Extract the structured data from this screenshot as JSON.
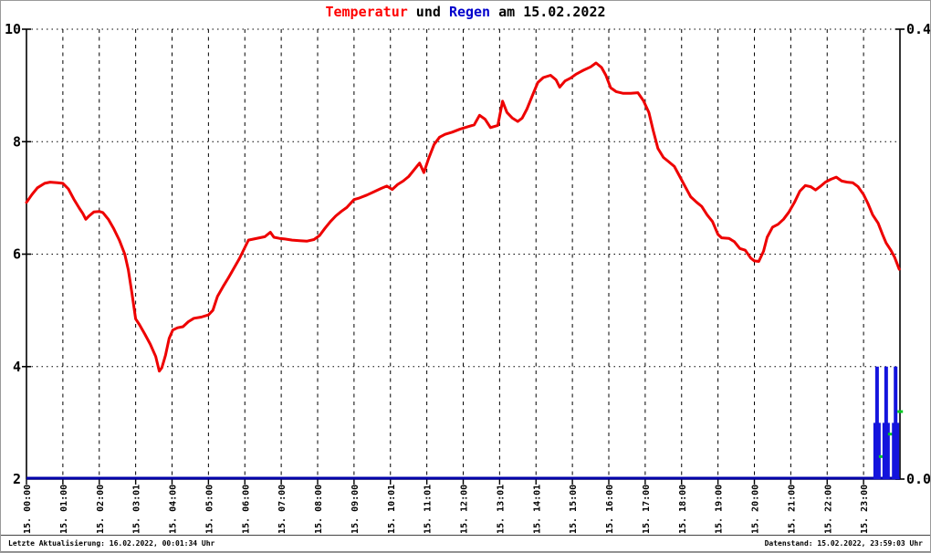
{
  "title": {
    "temperatur": "Temperatur",
    "und": " und ",
    "regen": "Regen",
    "date_suffix": " am 15.02.2022"
  },
  "footer": {
    "last_update": "Letzte Aktualisierung: 16.02.2022, 00:01:34 Uhr",
    "data_state": "Datenstand: 15.02.2022, 23:59:03 Uhr"
  },
  "colors": {
    "title_temperatur": "#ff0000",
    "title_regen": "#0000cc",
    "temperature_line": "#ee0000",
    "rain_bar": "#1414dd",
    "rain_baseline": "#0000aa",
    "rain_cumulative_mark": "#00cc22",
    "grid": "#000000"
  },
  "chart_data": {
    "type": "mixed-line-bar",
    "title": "Temperatur und Regen am 15.02.2022",
    "grid": {
      "horizontal": "dotted",
      "vertical": "dashed"
    },
    "x_axis": {
      "unit": "hours",
      "range": [
        0,
        24
      ],
      "tick_labels": [
        "15. 00:00",
        "15. 01:00",
        "15. 02:00",
        "15. 03:01",
        "15. 04:00",
        "15. 05:00",
        "15. 06:00",
        "15. 07:00",
        "15. 08:00",
        "15. 09:00",
        "15. 10:01",
        "15. 11:01",
        "15. 12:00",
        "15. 13:01",
        "15. 14:01",
        "15. 15:00",
        "15. 16:00",
        "15. 17:00",
        "15. 18:00",
        "15. 19:00",
        "15. 20:00",
        "15. 21:00",
        "15. 22:00",
        "15. 23:00"
      ]
    },
    "y_axis_left": {
      "series": "Temperatur",
      "range": [
        2,
        10
      ],
      "ticks": [
        10,
        8,
        6,
        4,
        2
      ],
      "tick_labels": [
        "10",
        "8",
        "6",
        "4",
        "2"
      ]
    },
    "y_axis_right": {
      "series": "Regen",
      "range": [
        0,
        0.4
      ],
      "ticks": [
        0.4,
        0.0
      ],
      "tick_labels": [
        "0.4",
        "0.0"
      ]
    },
    "series": [
      {
        "name": "Temperatur",
        "type": "line",
        "axis": "left",
        "color": "#ee0000",
        "points": [
          [
            0,
            6.92
          ],
          [
            0.15,
            7.06
          ],
          [
            0.3,
            7.18
          ],
          [
            0.5,
            7.26
          ],
          [
            0.65,
            7.28
          ],
          [
            0.85,
            7.27
          ],
          [
            1.0,
            7.26
          ],
          [
            1.15,
            7.16
          ],
          [
            1.3,
            6.98
          ],
          [
            1.45,
            6.82
          ],
          [
            1.55,
            6.72
          ],
          [
            1.63,
            6.62
          ],
          [
            1.72,
            6.68
          ],
          [
            1.85,
            6.75
          ],
          [
            2.0,
            6.76
          ],
          [
            2.1,
            6.74
          ],
          [
            2.25,
            6.62
          ],
          [
            2.4,
            6.45
          ],
          [
            2.55,
            6.25
          ],
          [
            2.7,
            6.0
          ],
          [
            2.8,
            5.72
          ],
          [
            2.9,
            5.3
          ],
          [
            3.0,
            4.85
          ],
          [
            3.1,
            4.75
          ],
          [
            3.25,
            4.58
          ],
          [
            3.4,
            4.4
          ],
          [
            3.55,
            4.18
          ],
          [
            3.65,
            3.92
          ],
          [
            3.72,
            3.98
          ],
          [
            3.82,
            4.2
          ],
          [
            3.92,
            4.5
          ],
          [
            4.02,
            4.65
          ],
          [
            4.15,
            4.69
          ],
          [
            4.3,
            4.71
          ],
          [
            4.45,
            4.8
          ],
          [
            4.6,
            4.86
          ],
          [
            4.8,
            4.88
          ],
          [
            5.0,
            4.92
          ],
          [
            5.12,
            5.0
          ],
          [
            5.25,
            5.25
          ],
          [
            5.4,
            5.42
          ],
          [
            5.55,
            5.58
          ],
          [
            5.7,
            5.75
          ],
          [
            5.85,
            5.92
          ],
          [
            6.0,
            6.12
          ],
          [
            6.1,
            6.25
          ],
          [
            6.25,
            6.27
          ],
          [
            6.4,
            6.29
          ],
          [
            6.55,
            6.31
          ],
          [
            6.7,
            6.39
          ],
          [
            6.8,
            6.3
          ],
          [
            6.95,
            6.28
          ],
          [
            7.1,
            6.27
          ],
          [
            7.3,
            6.25
          ],
          [
            7.5,
            6.24
          ],
          [
            7.7,
            6.23
          ],
          [
            7.9,
            6.26
          ],
          [
            8.05,
            6.33
          ],
          [
            8.2,
            6.46
          ],
          [
            8.35,
            6.58
          ],
          [
            8.5,
            6.68
          ],
          [
            8.65,
            6.76
          ],
          [
            8.8,
            6.83
          ],
          [
            9.0,
            6.97
          ],
          [
            9.15,
            7.0
          ],
          [
            9.35,
            7.05
          ],
          [
            9.55,
            7.11
          ],
          [
            9.75,
            7.17
          ],
          [
            9.9,
            7.21
          ],
          [
            10.05,
            7.15
          ],
          [
            10.2,
            7.24
          ],
          [
            10.35,
            7.3
          ],
          [
            10.5,
            7.38
          ],
          [
            10.65,
            7.5
          ],
          [
            10.8,
            7.62
          ],
          [
            10.92,
            7.45
          ],
          [
            11.05,
            7.7
          ],
          [
            11.2,
            7.95
          ],
          [
            11.35,
            8.08
          ],
          [
            11.5,
            8.13
          ],
          [
            11.7,
            8.17
          ],
          [
            11.9,
            8.22
          ],
          [
            12.1,
            8.26
          ],
          [
            12.3,
            8.3
          ],
          [
            12.45,
            8.47
          ],
          [
            12.6,
            8.4
          ],
          [
            12.75,
            8.25
          ],
          [
            12.95,
            8.29
          ],
          [
            13.08,
            8.72
          ],
          [
            13.2,
            8.52
          ],
          [
            13.35,
            8.42
          ],
          [
            13.5,
            8.36
          ],
          [
            13.62,
            8.42
          ],
          [
            13.75,
            8.58
          ],
          [
            13.9,
            8.82
          ],
          [
            14.05,
            9.05
          ],
          [
            14.2,
            9.14
          ],
          [
            14.4,
            9.18
          ],
          [
            14.55,
            9.1
          ],
          [
            14.65,
            8.97
          ],
          [
            14.8,
            9.08
          ],
          [
            14.95,
            9.13
          ],
          [
            15.1,
            9.2
          ],
          [
            15.3,
            9.27
          ],
          [
            15.5,
            9.33
          ],
          [
            15.65,
            9.4
          ],
          [
            15.8,
            9.32
          ],
          [
            15.92,
            9.18
          ],
          [
            16.05,
            8.96
          ],
          [
            16.2,
            8.89
          ],
          [
            16.4,
            8.86
          ],
          [
            16.6,
            8.86
          ],
          [
            16.8,
            8.87
          ],
          [
            16.95,
            8.73
          ],
          [
            17.1,
            8.52
          ],
          [
            17.22,
            8.2
          ],
          [
            17.35,
            7.88
          ],
          [
            17.5,
            7.72
          ],
          [
            17.65,
            7.64
          ],
          [
            17.8,
            7.56
          ],
          [
            17.95,
            7.38
          ],
          [
            18.1,
            7.2
          ],
          [
            18.25,
            7.02
          ],
          [
            18.4,
            6.93
          ],
          [
            18.55,
            6.85
          ],
          [
            18.7,
            6.7
          ],
          [
            18.85,
            6.58
          ],
          [
            19.0,
            6.35
          ],
          [
            19.1,
            6.29
          ],
          [
            19.3,
            6.28
          ],
          [
            19.45,
            6.22
          ],
          [
            19.6,
            6.1
          ],
          [
            19.75,
            6.07
          ],
          [
            19.9,
            5.93
          ],
          [
            20.0,
            5.88
          ],
          [
            20.12,
            5.87
          ],
          [
            20.25,
            6.05
          ],
          [
            20.35,
            6.3
          ],
          [
            20.5,
            6.48
          ],
          [
            20.65,
            6.53
          ],
          [
            20.8,
            6.62
          ],
          [
            20.95,
            6.75
          ],
          [
            21.1,
            6.92
          ],
          [
            21.25,
            7.12
          ],
          [
            21.4,
            7.22
          ],
          [
            21.55,
            7.2
          ],
          [
            21.68,
            7.14
          ],
          [
            21.8,
            7.2
          ],
          [
            21.95,
            7.28
          ],
          [
            22.1,
            7.33
          ],
          [
            22.25,
            7.37
          ],
          [
            22.4,
            7.3
          ],
          [
            22.55,
            7.28
          ],
          [
            22.7,
            7.27
          ],
          [
            22.85,
            7.2
          ],
          [
            23.0,
            7.06
          ],
          [
            23.12,
            6.9
          ],
          [
            23.25,
            6.7
          ],
          [
            23.4,
            6.55
          ],
          [
            23.52,
            6.35
          ],
          [
            23.62,
            6.2
          ],
          [
            23.75,
            6.07
          ],
          [
            23.85,
            5.95
          ],
          [
            23.98,
            5.73
          ]
        ]
      },
      {
        "name": "Regen",
        "type": "bar",
        "axis": "right",
        "color": "#1414dd",
        "baseline_value": 0,
        "baseline_color": "#0000aa",
        "cumulative_color": "#00cc22",
        "bars": [
          {
            "hour": 23.37,
            "value": 0.1,
            "value2": 0.05,
            "cumulative": 0.02
          },
          {
            "hour": 23.62,
            "value": 0.1,
            "value2": 0.05,
            "cumulative": 0.04
          },
          {
            "hour": 23.88,
            "value": 0.1,
            "value2": 0.05,
            "cumulative": 0.06
          }
        ]
      }
    ]
  }
}
